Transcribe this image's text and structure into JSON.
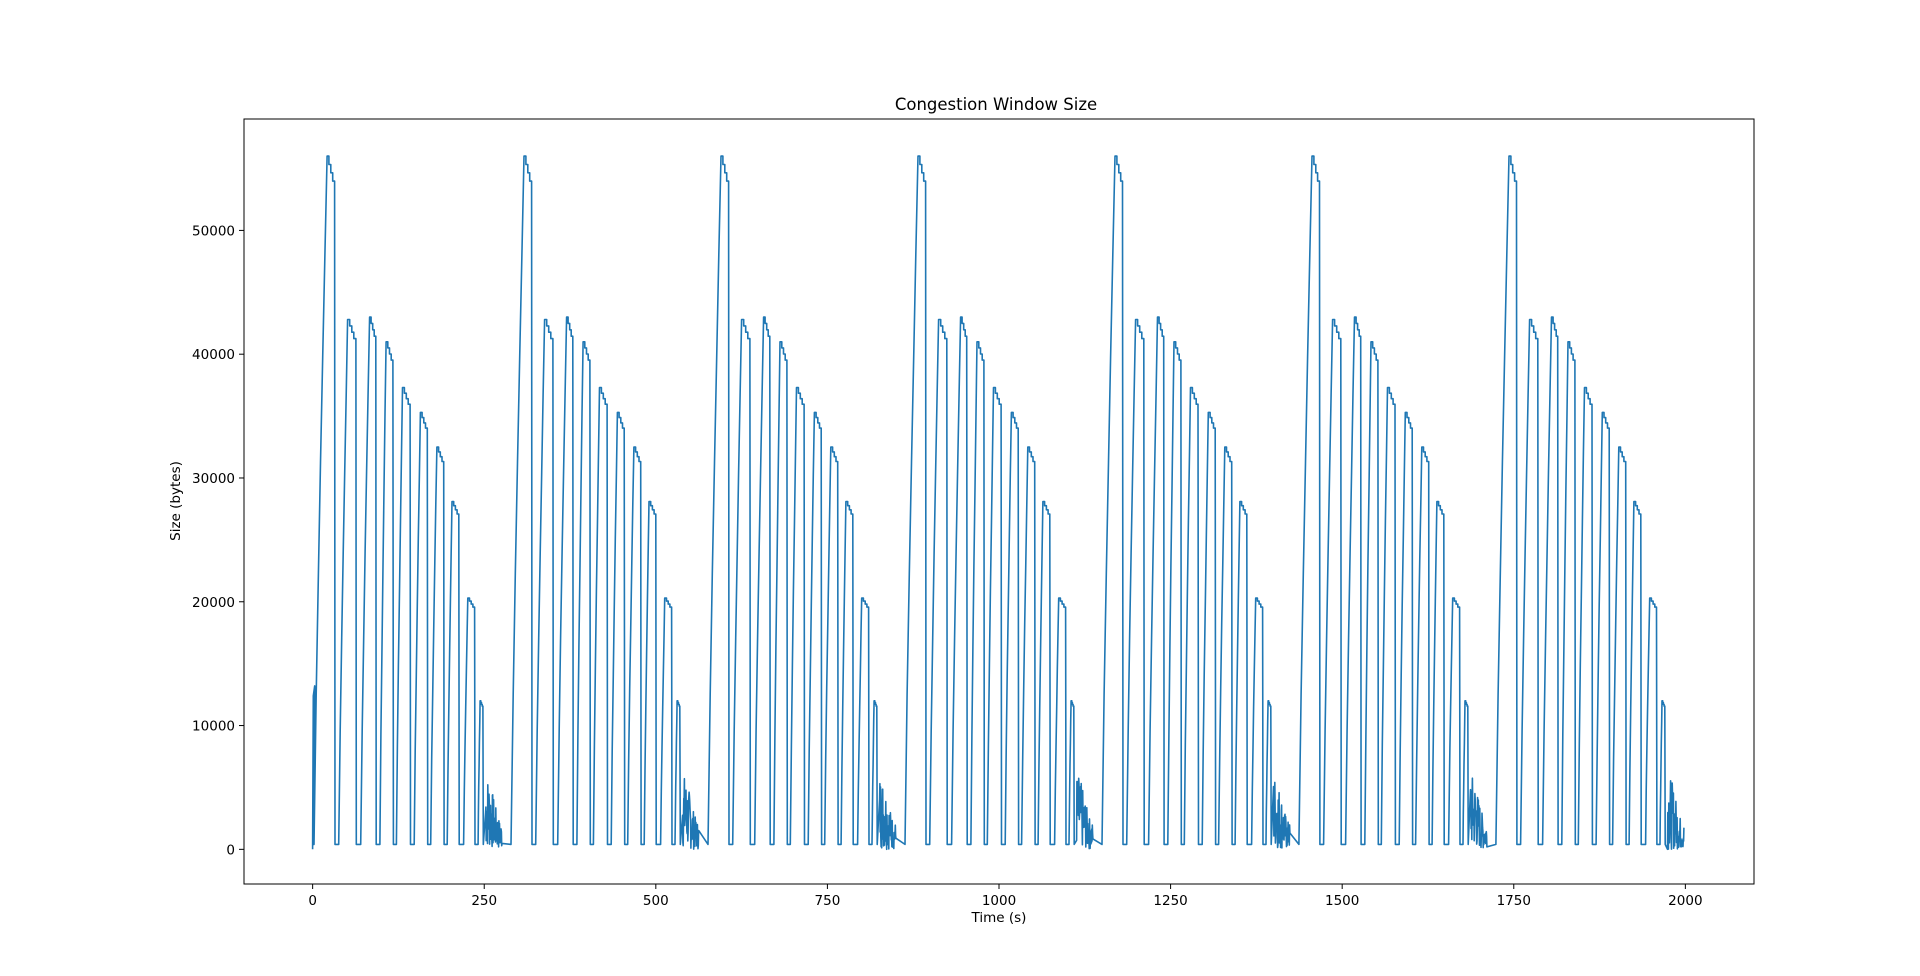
{
  "chart_data": {
    "type": "line",
    "title": "Congestion Window Size",
    "xlabel": "Time (s)",
    "ylabel": "Size (bytes)",
    "xlim": [
      -100,
      2100
    ],
    "ylim": [
      -2800,
      59000
    ],
    "xticks": [
      0,
      250,
      500,
      750,
      1000,
      1250,
      1500,
      1750,
      2000
    ],
    "yticks": [
      0,
      10000,
      20000,
      30000,
      40000,
      50000
    ],
    "xtick_labels": [
      "0",
      "250",
      "500",
      "750",
      "1000",
      "1250",
      "1500",
      "1750",
      "2000"
    ],
    "ytick_labels": [
      "0",
      "10000",
      "20000",
      "30000",
      "40000",
      "50000"
    ],
    "grid": false,
    "line_color": "#1f77b4",
    "cycle_period_s": 287,
    "cycle_starts_s": [
      0,
      287,
      574,
      861,
      1148,
      1435,
      1722
    ],
    "x_end_s": 2000,
    "series": [
      {
        "name": "",
        "cycle_pulses": [
          {
            "t_start": 2,
            "t_peak": 21,
            "peak": 56000,
            "t_drop": 32,
            "floor": 400
          },
          {
            "t_start": 38,
            "t_peak": 51,
            "peak": 42800,
            "t_drop": 63,
            "floor": 400
          },
          {
            "t_start": 70,
            "t_peak": 83,
            "peak": 43000,
            "t_drop": 92,
            "floor": 400
          },
          {
            "t_start": 98,
            "t_peak": 107,
            "peak": 41000,
            "t_drop": 117,
            "floor": 400
          },
          {
            "t_start": 122,
            "t_peak": 131,
            "peak": 37300,
            "t_drop": 142,
            "floor": 400
          },
          {
            "t_start": 148,
            "t_peak": 157,
            "peak": 35300,
            "t_drop": 167,
            "floor": 400
          },
          {
            "t_start": 172,
            "t_peak": 181,
            "peak": 32500,
            "t_drop": 191,
            "floor": 400
          },
          {
            "t_start": 196,
            "t_peak": 203,
            "peak": 28100,
            "t_drop": 213,
            "floor": 400
          },
          {
            "t_start": 220,
            "t_peak": 226,
            "peak": 20300,
            "t_drop": 236,
            "floor": 400
          },
          {
            "t_start": 241,
            "t_peak": 244,
            "peak": 12000,
            "t_drop": 248,
            "floor": 400
          }
        ],
        "noise_burst": {
          "t_start": 252,
          "t_end": 276,
          "min": 0,
          "max": 6100
        },
        "first_cycle_initial_points": [
          {
            "x": 0,
            "y": 0
          },
          {
            "x": 1,
            "y": 12400
          },
          {
            "x": 3,
            "y": 13200
          }
        ]
      }
    ]
  }
}
